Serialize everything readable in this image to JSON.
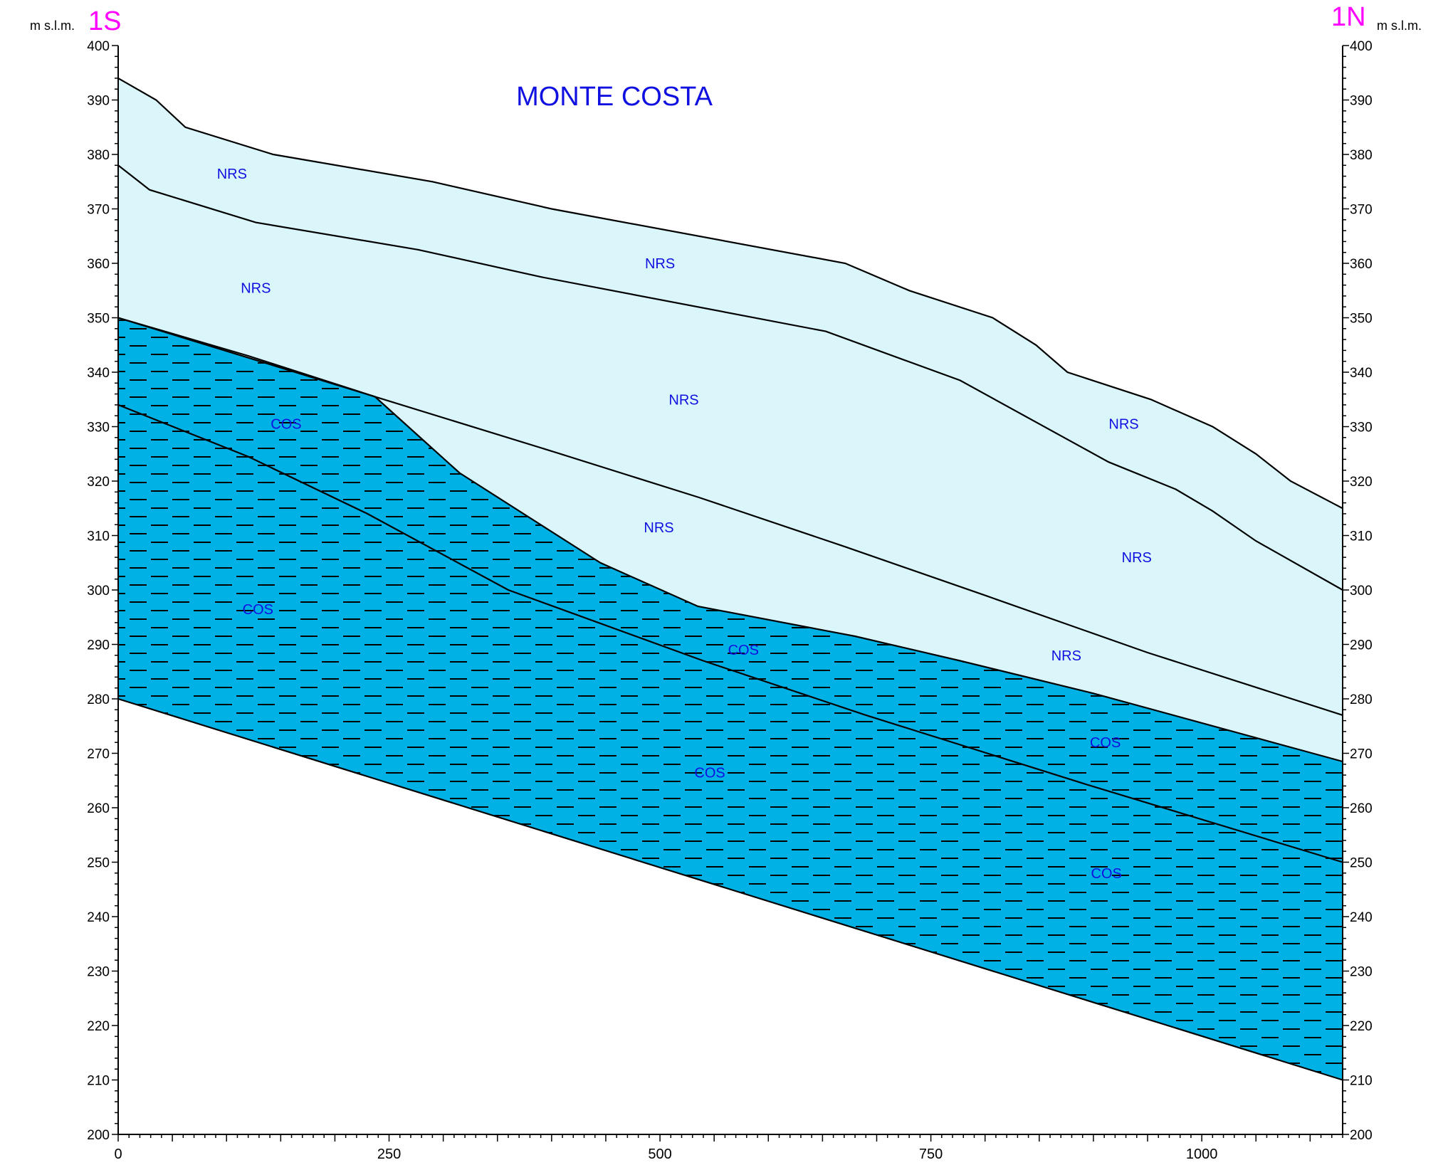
{
  "title": "MONTE COSTA",
  "left_end_label": "1S",
  "right_end_label": "1N",
  "left_unit": "m s.l.m.",
  "right_unit": "m s.l.m.",
  "colors": {
    "nrs_fill": "#daf6fb",
    "cos_fill": "#00b1e6",
    "title": "#1010e0",
    "unit_label": "#1010e0",
    "end_label": "#ff00ff",
    "line": "#000000"
  },
  "chart_data": {
    "type": "geological-cross-section",
    "xlim": [
      0,
      1130
    ],
    "ylim": [
      200,
      400
    ],
    "x_ticks": [
      0,
      250,
      500,
      750,
      1000
    ],
    "y_ticks": [
      200,
      210,
      220,
      230,
      240,
      250,
      260,
      270,
      280,
      290,
      300,
      310,
      320,
      330,
      340,
      350,
      360,
      370,
      380,
      390,
      400
    ],
    "surfaces": [
      {
        "name": "topography",
        "points": [
          [
            0,
            394
          ],
          [
            35,
            390
          ],
          [
            62,
            385
          ],
          [
            143,
            380
          ],
          [
            290,
            375
          ],
          [
            400,
            370
          ],
          [
            671,
            360
          ],
          [
            730,
            355
          ],
          [
            807,
            350
          ],
          [
            847,
            345
          ],
          [
            876,
            340
          ],
          [
            953,
            335
          ],
          [
            1010,
            330
          ],
          [
            1050,
            325
          ],
          [
            1082,
            320
          ],
          [
            1130,
            315
          ]
        ]
      },
      {
        "name": "nrs-internal-1",
        "points": [
          [
            0,
            378
          ],
          [
            29,
            373.5
          ],
          [
            127,
            367.5
          ],
          [
            277,
            362.5
          ],
          [
            390,
            357.5
          ],
          [
            653,
            347.5
          ],
          [
            777,
            338.5
          ],
          [
            914,
            323.5
          ],
          [
            976,
            318.5
          ],
          [
            1010,
            314.5
          ],
          [
            1050,
            309
          ],
          [
            1130,
            300
          ]
        ]
      },
      {
        "name": "nrs-base",
        "points": [
          [
            0,
            350
          ],
          [
            120,
            343
          ],
          [
            237,
            335.5
          ],
          [
            400,
            325.5
          ],
          [
            536,
            317
          ],
          [
            670,
            308
          ],
          [
            800,
            299
          ],
          [
            950,
            288.5
          ],
          [
            1130,
            277
          ]
        ]
      },
      {
        "name": "cos-top",
        "points": [
          [
            0,
            350
          ],
          [
            237,
            335.5
          ],
          [
            315,
            321.5
          ],
          [
            445,
            305
          ],
          [
            535,
            297
          ],
          [
            680,
            291.5
          ],
          [
            777,
            287
          ],
          [
            900,
            281
          ],
          [
            1130,
            268.5
          ]
        ]
      },
      {
        "name": "cos-internal",
        "points": [
          [
            0,
            334
          ],
          [
            120,
            324.5
          ],
          [
            230,
            314
          ],
          [
            360,
            300
          ],
          [
            540,
            287
          ],
          [
            690,
            277
          ],
          [
            890,
            264.5
          ],
          [
            1130,
            250
          ]
        ]
      },
      {
        "name": "cos-base",
        "points": [
          [
            0,
            280
          ],
          [
            1130,
            210
          ]
        ]
      }
    ],
    "labels": [
      {
        "text": "NRS",
        "x": 105,
        "y": 376.5
      },
      {
        "text": "NRS",
        "x": 127,
        "y": 355.5
      },
      {
        "text": "NRS",
        "x": 500,
        "y": 360
      },
      {
        "text": "NRS",
        "x": 522,
        "y": 335
      },
      {
        "text": "NRS",
        "x": 928,
        "y": 330.5
      },
      {
        "text": "NRS",
        "x": 499,
        "y": 311.5
      },
      {
        "text": "NRS",
        "x": 940,
        "y": 306
      },
      {
        "text": "NRS",
        "x": 875,
        "y": 288
      },
      {
        "text": "COS",
        "x": 155,
        "y": 330.5
      },
      {
        "text": "COS",
        "x": 129,
        "y": 296.5
      },
      {
        "text": "COS",
        "x": 577,
        "y": 289
      },
      {
        "text": "COS",
        "x": 911,
        "y": 272
      },
      {
        "text": "COS",
        "x": 546,
        "y": 266.5
      },
      {
        "text": "COS",
        "x": 912,
        "y": 248
      }
    ]
  }
}
